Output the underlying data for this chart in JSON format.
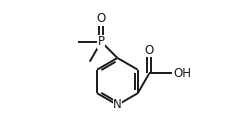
{
  "bg_color": "#ffffff",
  "line_color": "#1a1a1a",
  "lw": 1.4,
  "figsize": [
    2.3,
    1.34
  ],
  "dpi": 100,
  "xlim": [
    -0.05,
    1.05
  ],
  "ylim": [
    -0.05,
    1.05
  ]
}
